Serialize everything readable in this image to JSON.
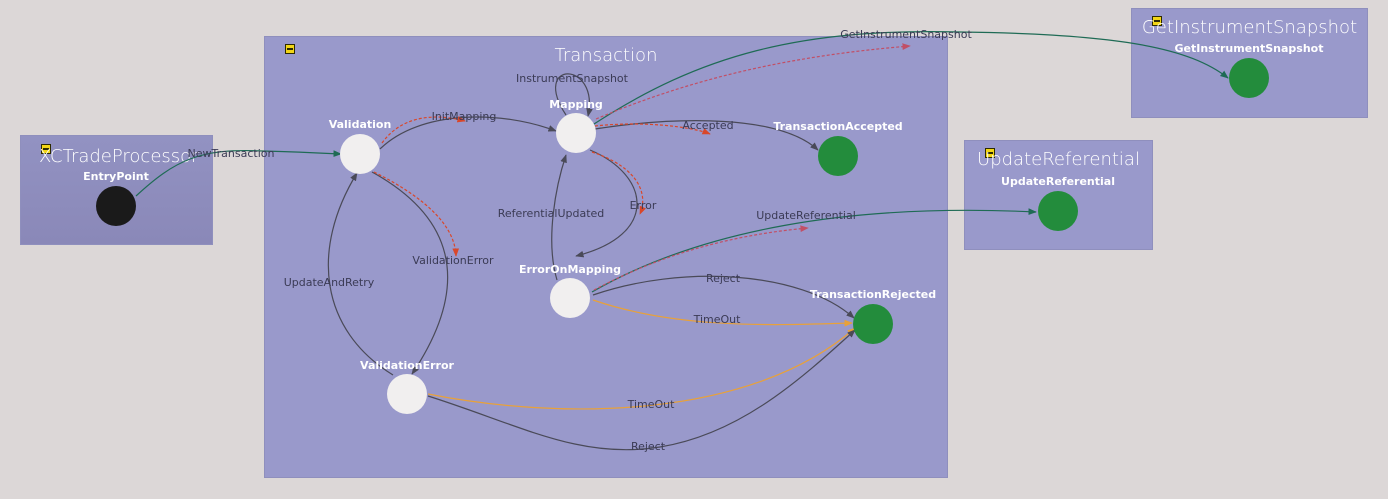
{
  "groups": {
    "entry": "XCTradeProcessor",
    "transaction": "Transaction",
    "snapshot": "GetInstrumentSnapshot",
    "referential": "UpdateReferential"
  },
  "states": {
    "entry_point": "EntryPoint",
    "validation": "Validation",
    "mapping": "Mapping",
    "transaction_accepted": "TransactionAccepted",
    "error_on_mapping": "ErrorOnMapping",
    "transaction_rejected": "TransactionRejected",
    "validation_error": "ValidationError",
    "get_instrument_snapshot": "GetInstrumentSnapshot",
    "update_referential": "UpdateReferential"
  },
  "transitions": {
    "new_transaction": "NewTransaction",
    "init_mapping": "InitMapping",
    "instrument_snapshot": "InstrumentSnapshot",
    "accepted": "Accepted",
    "get_instrument_snapshot": "GetInstrumentSnapshot",
    "error": "Error",
    "referential_updated": "ReferentialUpdated",
    "validation_error": "ValidationError",
    "update_and_retry": "UpdateAndRetry",
    "update_referential": "UpdateReferential",
    "reject_mapping": "Reject",
    "timeout_mapping": "TimeOut",
    "timeout_validation": "TimeOut",
    "reject_validation": "Reject"
  },
  "colors": {
    "background": "#dcd7d7",
    "group": "#9999cb",
    "state_idle": "#f1efef",
    "state_final": "#238c3c",
    "state_entry": "#1a1a1a",
    "edge_default": "#4a4a58",
    "edge_success": "#1f6b55",
    "edge_timeout": "#e8a13a",
    "edge_trace": "#d9472a",
    "edge_pending": "#c14f66"
  }
}
